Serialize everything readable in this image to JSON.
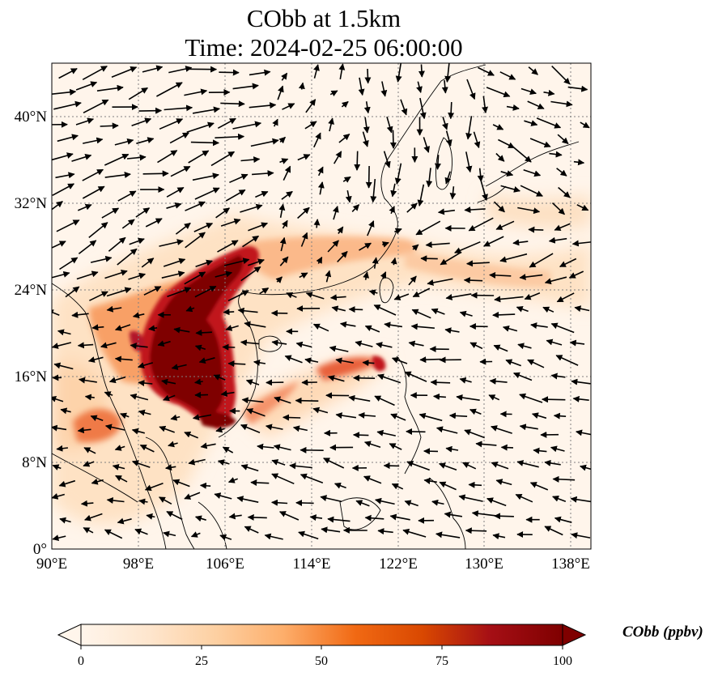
{
  "title": {
    "line1": "CObb at 1.5km",
    "line2": "Time: 2024-02-25 06:00:00"
  },
  "map": {
    "lon_range": [
      90,
      139
    ],
    "lat_range": [
      0,
      45
    ],
    "gridlines": "dotted",
    "lon_ticks": [
      "90°E",
      "98°E",
      "106°E",
      "114°E",
      "122°E",
      "130°E",
      "138°E"
    ],
    "lat_ticks": [
      "0°",
      "8°N",
      "16°N",
      "24°N",
      "32°N",
      "40°N"
    ],
    "wind_vectors": "black arrows",
    "field_description": "biomass burning CO concentration, highest (>=100 ppbv) over Indochina / southern China, plume extending east across Taiwan into the Pacific"
  },
  "colorbar": {
    "title": "CObb (ppbv)",
    "ticks": [
      "0",
      "25",
      "50",
      "75",
      "100"
    ],
    "range": [
      0,
      100
    ],
    "colormap": [
      "#fff5eb",
      "#fee6ce",
      "#fdd0a2",
      "#fdae6b",
      "#f16913",
      "#d94801",
      "#a50f15",
      "#7f0000"
    ],
    "extend": "both"
  },
  "colors": {
    "max_concentration": "#7f0000",
    "background_field": "#fff5eb",
    "arrows": "#000000",
    "coastline": "#000000",
    "grid": "#808080"
  }
}
